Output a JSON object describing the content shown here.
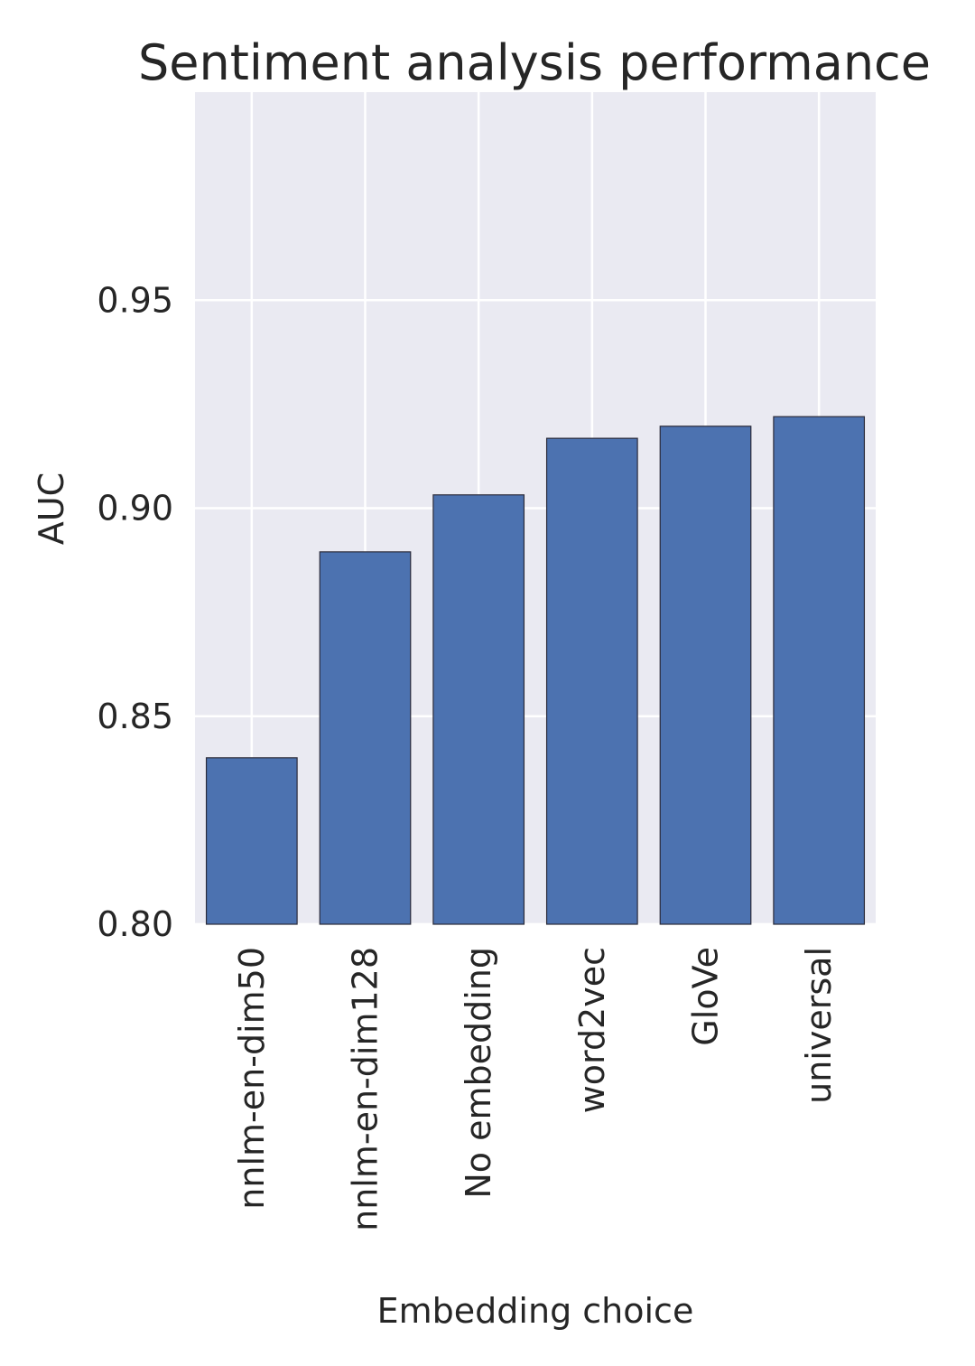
{
  "chart_data": {
    "type": "bar",
    "title": "Sentiment analysis performance",
    "xlabel": "Embedding choice",
    "ylabel": "AUC",
    "categories": [
      "nnlm-en-dim50",
      "nnlm-en-dim128",
      "No embedding",
      "word2vec",
      "GloVe",
      "universal"
    ],
    "values": [
      0.84,
      0.8895,
      0.9032,
      0.9168,
      0.9197,
      0.922
    ],
    "ylim": [
      0.8,
      1.0
    ],
    "yticks": [
      0.8,
      0.85,
      0.9,
      0.95
    ],
    "ytick_labels": [
      "0.80",
      "0.85",
      "0.90",
      "0.95"
    ],
    "grid": true,
    "legend": false,
    "colors": {
      "bar": "#4c72b0",
      "bar_edge": "#2b2b3a",
      "plot_background": "#eaeaf2",
      "grid": "#ffffff",
      "text": "#262626"
    }
  }
}
